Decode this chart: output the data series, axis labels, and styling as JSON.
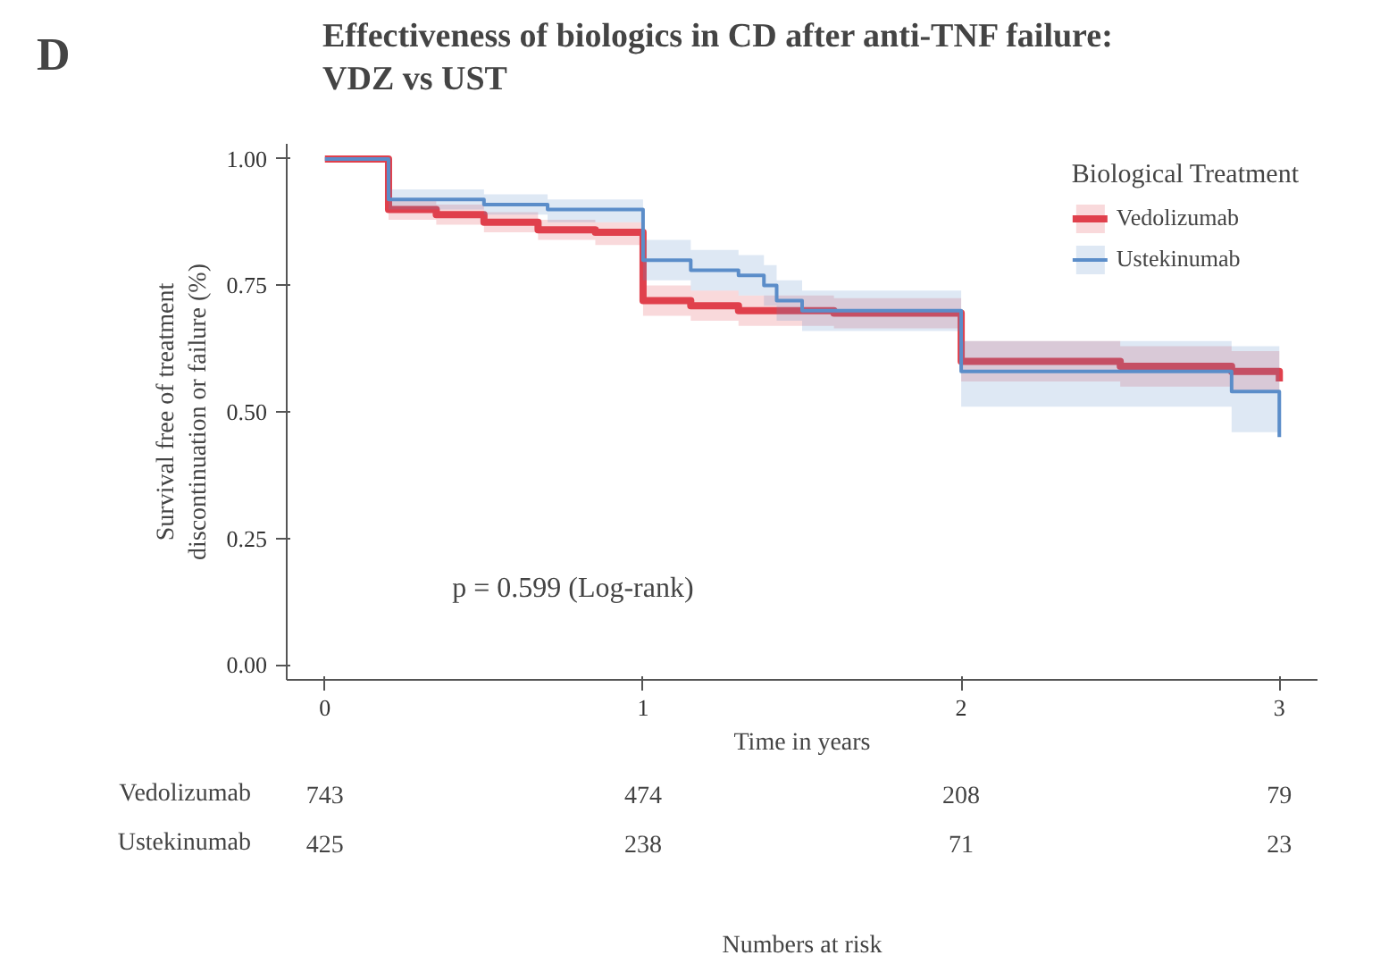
{
  "chart_data": {
    "type": "step",
    "title": "Effectiveness of biologics in CD after anti-TNF failure:\nVDZ vs UST",
    "xlabel": "Time in years",
    "ylabel": "Survival free of treatment\ndiscontinuation or failure (%)",
    "legend_title": "Biological Treatment",
    "legend": "top right",
    "grid": false,
    "line_style": "solid",
    "xlim": [
      -0.12,
      3.12
    ],
    "ylim": [
      -0.03,
      1.03
    ],
    "xticks": [
      0,
      1,
      2,
      3
    ],
    "yticks": [
      {
        "value": 0,
        "label": "0.00"
      },
      {
        "value": 0.25,
        "label": "0.25"
      },
      {
        "value": 0.5,
        "label": "0.50"
      },
      {
        "value": 0.75,
        "label": "0.75"
      },
      {
        "value": 1,
        "label": "1.00"
      }
    ],
    "series": [
      {
        "name": "Vedolizumab",
        "color": "#e0404c",
        "x": [
          0,
          0.2,
          0.35,
          0.5,
          0.67,
          0.85,
          1.0,
          1.15,
          1.3,
          1.6,
          2.0,
          2.5,
          2.85,
          3.0
        ],
        "values": [
          1.0,
          0.9,
          0.89,
          0.875,
          0.86,
          0.855,
          0.72,
          0.71,
          0.7,
          0.695,
          0.6,
          0.59,
          0.58,
          0.56
        ],
        "lower": [
          1.0,
          0.88,
          0.87,
          0.855,
          0.84,
          0.83,
          0.69,
          0.68,
          0.67,
          0.665,
          0.56,
          0.55,
          0.54,
          0.52
        ],
        "upper": [
          1.0,
          0.92,
          0.91,
          0.895,
          0.88,
          0.875,
          0.75,
          0.74,
          0.73,
          0.725,
          0.64,
          0.63,
          0.62,
          0.6
        ]
      },
      {
        "name": "Ustekinumab",
        "color": "#5b8dc9",
        "x": [
          0,
          0.2,
          0.5,
          0.7,
          1.0,
          1.15,
          1.3,
          1.38,
          1.42,
          1.5,
          2.0,
          2.85,
          3.0
        ],
        "values": [
          1.0,
          0.92,
          0.91,
          0.9,
          0.8,
          0.78,
          0.77,
          0.75,
          0.72,
          0.7,
          0.58,
          0.54,
          0.45
        ],
        "lower": [
          1.0,
          0.9,
          0.89,
          0.875,
          0.76,
          0.74,
          0.73,
          0.71,
          0.68,
          0.66,
          0.51,
          0.46,
          0.45
        ],
        "upper": [
          1.0,
          0.94,
          0.93,
          0.92,
          0.84,
          0.82,
          0.81,
          0.79,
          0.76,
          0.74,
          0.64,
          0.63,
          0.45
        ]
      }
    ],
    "annotations": [
      "D",
      "p = 0.599 (Log-rank)",
      "Vedolizumab",
      "743",
      "474",
      "208",
      "79",
      "Ustekinumab",
      "425",
      "238",
      "71",
      "23",
      "Numbers at risk"
    ]
  }
}
